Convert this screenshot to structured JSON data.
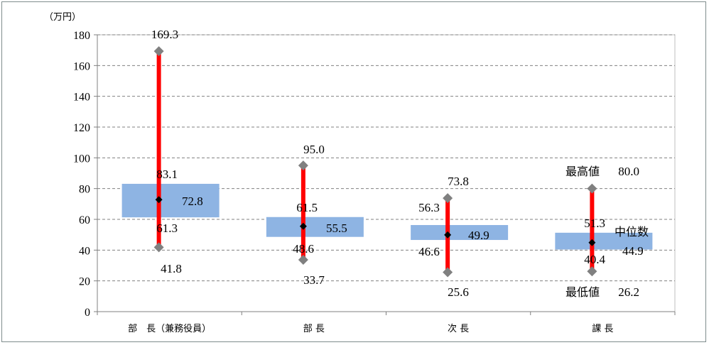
{
  "chart_data": {
    "type": "box",
    "unit_label": "（万円）",
    "ylim": [
      0,
      180
    ],
    "yticks": [
      0,
      20,
      40,
      60,
      80,
      100,
      120,
      140,
      160,
      180
    ],
    "grid": true,
    "categories": [
      "部　長（兼務役員）",
      "部 長",
      "次 長",
      "課 長"
    ],
    "max": [
      169.3,
      95.0,
      73.8,
      80.0
    ],
    "q3": [
      83.1,
      61.5,
      56.3,
      51.3
    ],
    "median": [
      72.8,
      55.5,
      49.9,
      44.9
    ],
    "q1": [
      61.3,
      48.6,
      46.6,
      40.4
    ],
    "min": [
      41.8,
      33.7,
      25.6,
      26.2
    ],
    "labels": {
      "max": [
        "169.3",
        "95.0",
        "73.8",
        "80.0"
      ],
      "q3": [
        "83.1",
        "61.5",
        "56.3",
        "51.3"
      ],
      "median": [
        "72.8",
        "55.5",
        "49.9",
        "44.9"
      ],
      "q1": [
        "61.3",
        "48.6",
        "46.6",
        "40.4"
      ],
      "min": [
        "41.8",
        "33.7",
        "25.6",
        "26.2"
      ]
    },
    "annotations": {
      "max": "最高値",
      "median": "中位数",
      "min": "最低値"
    },
    "colors": {
      "box": "#8eb4e3",
      "whisker": "#ff0000",
      "marker": "#808080",
      "median_marker": "#000000",
      "grid": "#808080"
    }
  }
}
